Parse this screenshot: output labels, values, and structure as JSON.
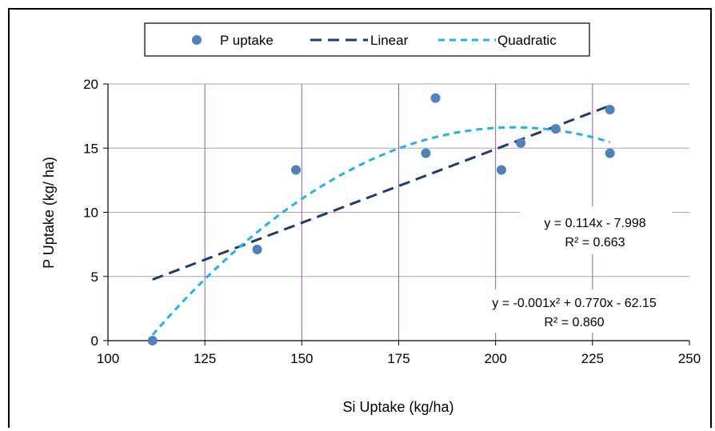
{
  "chart_data": {
    "type": "scatter",
    "xlabel": "Si Uptake (kg/ha)",
    "ylabel": "P Uptake (kg/ ha)",
    "xlim": [
      100,
      250
    ],
    "ylim": [
      0,
      20
    ],
    "xticks": [
      100,
      125,
      150,
      175,
      200,
      225,
      250
    ],
    "yticks": [
      0,
      5,
      10,
      15,
      20
    ],
    "x_tick_labels": [
      "100",
      "125",
      "150",
      "175",
      "200",
      "225",
      "250"
    ],
    "y_tick_labels": [
      "0",
      "5",
      "10",
      "15",
      "20"
    ],
    "grid": {
      "horizontal": true,
      "vertical": true,
      "vertical_color": "#9b59b6",
      "horizontal_color": "#a6a6a6"
    },
    "legend_position": "top-center",
    "series": [
      {
        "name": "P uptake",
        "kind": "points",
        "color": "#4f81bd",
        "x": [
          111.5,
          138.5,
          148.5,
          182,
          184.5,
          201.5,
          206.5,
          215.5,
          229.5,
          229.5
        ],
        "y": [
          0,
          7.1,
          13.3,
          14.6,
          18.9,
          13.3,
          15.4,
          16.5,
          18,
          14.6
        ]
      },
      {
        "name": "Linear",
        "kind": "trendline",
        "color": "#1f3a6e",
        "x_range": [
          111.5,
          229.5
        ],
        "equation": "y = 0.114x - 7.998",
        "r2": "R² = 0.663"
      },
      {
        "name": "Quadratic",
        "kind": "trendline",
        "color": "#1eb4ec",
        "x_range": [
          111.5,
          229.5
        ],
        "equation": "y = -0.001x² + 0.770x - 62.15",
        "r2": "R² = 0.860"
      }
    ]
  }
}
